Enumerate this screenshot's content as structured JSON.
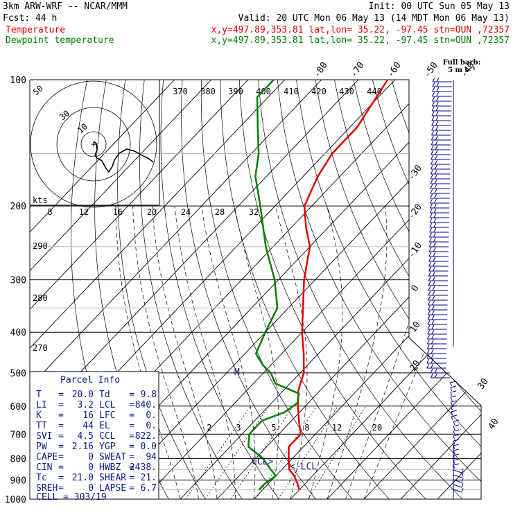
{
  "header": {
    "model": "3km ARW-WRF -- NCAR/MMM",
    "init": "Init: 00 UTC Sun 05 May 13",
    "fcst": "Fcst:     44 h",
    "valid": "Valid: 20 UTC Mon 06 May 13 (14 MDT Mon 06 May 13)",
    "temp_label": "Temperature",
    "dew_label": "Dewpoint temperature",
    "temp_info": "x,y=497.89,353.81   lat,lon= 35.22, -97.45  stn=OUN ,72357",
    "dew_info": "x,y=497.89,353.81   lat,lon= 35.22, -97.45  stn=OUN ,72357"
  },
  "colors": {
    "temperature": "#e00000",
    "dewpoint": "#008000",
    "parcel": "#0a1a8a"
  },
  "chart_data": {
    "type": "line",
    "diagram": "skew-T log-p",
    "pressure_levels": [
      100,
      200,
      300,
      400,
      500,
      600,
      700,
      800,
      900,
      1000
    ],
    "pressure_labels": [
      "100",
      "200",
      "300",
      "400",
      "500",
      "600",
      "700",
      "800",
      "900",
      "1000"
    ],
    "isotherm_labels": [
      "-80",
      "-70",
      "-60",
      "-50",
      "-40",
      "-30",
      "-20",
      "-10",
      "0",
      "10",
      "20",
      "30",
      "40"
    ],
    "theta_labels": [
      "370",
      "380",
      "390",
      "400",
      "410",
      "420",
      "430",
      "440"
    ],
    "theta_left_labels": [
      "290",
      "280",
      "270"
    ],
    "mixing_ratio_labels": [
      "2",
      "3",
      "5",
      "8",
      "12",
      "20"
    ],
    "series": [
      {
        "name": "Temperature",
        "points": [
          {
            "p": 100,
            "t": -62
          },
          {
            "p": 130,
            "t": -58
          },
          {
            "p": 150,
            "t": -58
          },
          {
            "p": 170,
            "t": -56
          },
          {
            "p": 200,
            "t": -52
          },
          {
            "p": 225,
            "t": -46
          },
          {
            "p": 250,
            "t": -40
          },
          {
            "p": 300,
            "t": -33
          },
          {
            "p": 400,
            "t": -20
          },
          {
            "p": 450,
            "t": -14
          },
          {
            "p": 500,
            "t": -9
          },
          {
            "p": 550,
            "t": -6
          },
          {
            "p": 600,
            "t": -2
          },
          {
            "p": 650,
            "t": 2
          },
          {
            "p": 700,
            "t": 6
          },
          {
            "p": 750,
            "t": 6
          },
          {
            "p": 800,
            "t": 9
          },
          {
            "p": 850,
            "t": 12
          },
          {
            "p": 880,
            "t": 15
          },
          {
            "p": 920,
            "t": 18
          },
          {
            "p": 950,
            "t": 20
          }
        ]
      },
      {
        "name": "Dewpoint temperature",
        "points": [
          {
            "p": 100,
            "t": -93
          },
          {
            "p": 110,
            "t": -93
          },
          {
            "p": 130,
            "t": -85
          },
          {
            "p": 150,
            "t": -78
          },
          {
            "p": 170,
            "t": -73
          },
          {
            "p": 200,
            "t": -64
          },
          {
            "p": 250,
            "t": -52
          },
          {
            "p": 300,
            "t": -41
          },
          {
            "p": 350,
            "t": -33
          },
          {
            "p": 400,
            "t": -30
          },
          {
            "p": 450,
            "t": -27
          },
          {
            "p": 480,
            "t": -22
          },
          {
            "p": 500,
            "t": -18
          },
          {
            "p": 530,
            "t": -14
          },
          {
            "p": 560,
            "t": -5
          },
          {
            "p": 590,
            "t": -3
          },
          {
            "p": 620,
            "t": -4
          },
          {
            "p": 650,
            "t": -8
          },
          {
            "p": 700,
            "t": -8
          },
          {
            "p": 750,
            "t": -5
          },
          {
            "p": 800,
            "t": 2
          },
          {
            "p": 850,
            "t": 7
          },
          {
            "p": 880,
            "t": 10
          },
          {
            "p": 920,
            "t": 9
          },
          {
            "p": 950,
            "t": 9
          }
        ]
      }
    ],
    "wind_axis_labels": [
      "10",
      "20",
      "30",
      "40"
    ],
    "kts_scale": [
      "8",
      "12",
      "16",
      "20",
      "24",
      "28",
      "32"
    ],
    "hodograph_ring_labels": [
      "50",
      "30",
      "10"
    ]
  },
  "markers": {
    "lcl": "<-LCL",
    "ccl": "CCL>",
    "parcel_lfc_marker": "M"
  },
  "wind_barb": {
    "title": "Full barb:",
    "scale": "5 m s⁻¹"
  },
  "hodograph": {
    "kts_label": "kts"
  },
  "parcel_info": {
    "title": "Parcel Info",
    "rows": [
      {
        "k1": "T",
        "v1": "20.0",
        "k2": "Td",
        "v2": "9.8"
      },
      {
        "k1": "LI",
        "v1": "3.2",
        "k2": "LCL",
        "v2": "840."
      },
      {
        "k1": "K",
        "v1": "16",
        "k2": "LFC",
        "v2": "0."
      },
      {
        "k1": "TT",
        "v1": "44",
        "k2": "EL",
        "v2": "0."
      },
      {
        "k1": "SVI",
        "v1": "4.5",
        "k2": "CCL",
        "v2": "822."
      },
      {
        "k1": "PW",
        "v1": "2.16",
        "k2": "YGP",
        "v2": "0.0"
      },
      {
        "k1": "CAPE",
        "v1": "0",
        "k2": "SWEAT",
        "v2": "94"
      },
      {
        "k1": "CIN",
        "v1": "0",
        "k2": "HWBZ",
        "v2": "2438."
      },
      {
        "k1": "Tc",
        "v1": "21.0",
        "k2": "SHEAR",
        "v2": "21."
      },
      {
        "k1": "SREH",
        "v1": "0",
        "k2": "LAPSE",
        "v2": "6.7"
      }
    ],
    "cell": "CELL = 303/19"
  }
}
